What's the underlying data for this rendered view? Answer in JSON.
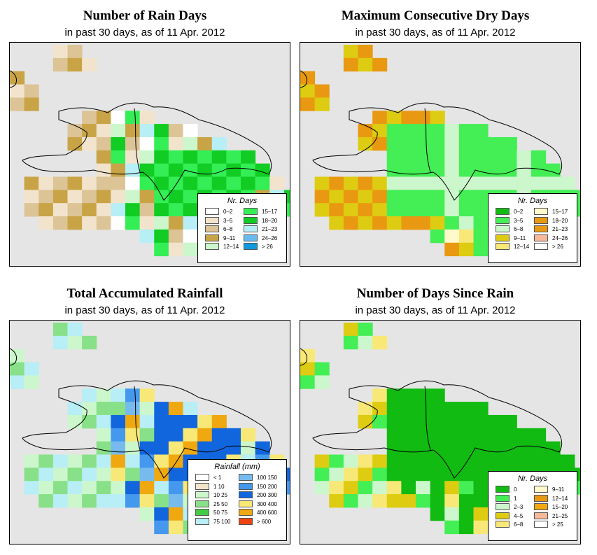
{
  "panels": [
    {
      "title": "Number of Rain Days",
      "subtitle": "in past 30 days, as of  11 Apr. 2012",
      "legend": {
        "title": "Nr. Days",
        "items": [
          {
            "label": "0–2",
            "color": "#ffffff"
          },
          {
            "label": "3–5",
            "color": "#f2e4cc"
          },
          {
            "label": "6–8",
            "color": "#dcc497"
          },
          {
            "label": "9–11",
            "color": "#c9a446"
          },
          {
            "label": "12–14",
            "color": "#ccf7cc"
          },
          {
            "label": "15–17",
            "color": "#33ee55"
          },
          {
            "label": "18–20",
            "color": "#11cc22"
          },
          {
            "label": "21–23",
            "color": "#b8eef6"
          },
          {
            "label": "24–26",
            "color": "#66bbf0"
          },
          {
            "label": "> 26",
            "color": "#1199dd"
          }
        ]
      }
    },
    {
      "title": "Maximum Consecutive Dry Days",
      "subtitle": "in past 30 days, as of  11 Apr. 2012",
      "legend": {
        "title": "Nr. Days",
        "items": [
          {
            "label": "0–2",
            "color": "#11bb11"
          },
          {
            "label": "3–5",
            "color": "#44ee55"
          },
          {
            "label": "6–8",
            "color": "#ccf7cc"
          },
          {
            "label": "9–11",
            "color": "#ddcc11"
          },
          {
            "label": "12–14",
            "color": "#f8e877"
          },
          {
            "label": "15–17",
            "color": "#fff9cc"
          },
          {
            "label": "18–20",
            "color": "#e89911"
          },
          {
            "label": "21–23",
            "color": "#e89911"
          },
          {
            "label": "24–26",
            "color": "#f7b999"
          },
          {
            "label": "> 26",
            "color": "#ffffff"
          }
        ]
      }
    },
    {
      "title": "Total Accumulated Rainfall",
      "subtitle": "in past 30 days, as of  11 Apr. 2012",
      "legend": {
        "title": "Rainfall (mm)",
        "items": [
          {
            "label": "< 1",
            "color": "#ffffff"
          },
          {
            "label": "1    10",
            "color": "#f2e4cc"
          },
          {
            "label": "10    25",
            "color": "#ccf7cc"
          },
          {
            "label": "25    50",
            "color": "#88e088"
          },
          {
            "label": "50    75",
            "color": "#44cc44"
          },
          {
            "label": "75  100",
            "color": "#b8eef6"
          },
          {
            "label": "100  150",
            "color": "#77bbee"
          },
          {
            "label": "150  200",
            "color": "#4499ee"
          },
          {
            "label": "200  300",
            "color": "#1166dd"
          },
          {
            "label": "300  400",
            "color": "#f8e877"
          },
          {
            "label": "400  600",
            "color": "#f0a811"
          },
          {
            "label": "> 600",
            "color": "#ee4411"
          }
        ]
      }
    },
    {
      "title": "Number of Days Since Rain",
      "subtitle": "in past 30 days, as of  11 Apr. 2012",
      "legend": {
        "title": "Nr. Days",
        "items": [
          {
            "label": "0",
            "color": "#11bb11"
          },
          {
            "label": "1",
            "color": "#44ee55"
          },
          {
            "label": "2–3",
            "color": "#ccf7cc"
          },
          {
            "label": "4–5",
            "color": "#ddcc11"
          },
          {
            "label": "6–8",
            "color": "#f8e877"
          },
          {
            "label": "9–11",
            "color": "#fff9cc"
          },
          {
            "label": "12–14",
            "color": "#e89911"
          },
          {
            "label": "15–20",
            "color": "#f0a811"
          },
          {
            "label": "21–25",
            "color": "#f7b999"
          },
          {
            "label": "> 25",
            "color": "#ffffff"
          }
        ]
      }
    }
  ]
}
